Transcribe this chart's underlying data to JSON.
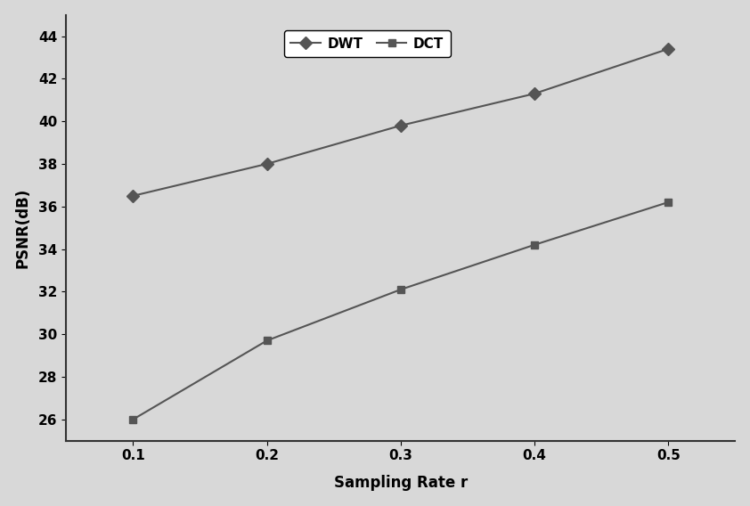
{
  "x": [
    0.1,
    0.2,
    0.3,
    0.4,
    0.5
  ],
  "dwt_y": [
    36.5,
    38.0,
    39.8,
    41.3,
    43.4
  ],
  "dct_y": [
    26.0,
    29.7,
    32.1,
    34.2,
    36.2
  ],
  "dwt_label": "DWT",
  "dct_label": "DCT",
  "xlabel": "Sampling Rate r",
  "ylabel": "PSNR(dB)",
  "xlim": [
    0.05,
    0.55
  ],
  "ylim": [
    25,
    45
  ],
  "yticks": [
    26,
    28,
    30,
    32,
    34,
    36,
    38,
    40,
    42,
    44
  ],
  "xticks": [
    0.1,
    0.2,
    0.3,
    0.4,
    0.5
  ],
  "line_color": "#555555",
  "bg_color": "#d8d8d8",
  "legend_fontsize": 11,
  "axis_fontsize": 12,
  "tick_fontsize": 11
}
